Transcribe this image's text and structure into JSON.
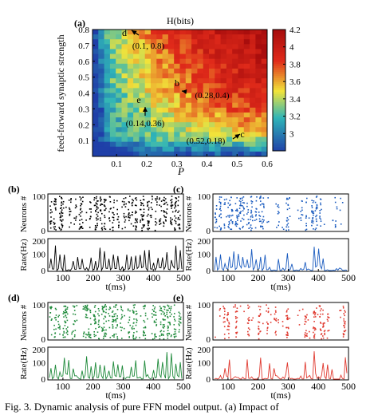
{
  "figure": {
    "caption": "Fig. 3. Dynamic analysis of pure FFN model output. (a) Impact of"
  },
  "chart_data": [
    {
      "panel": "(a)",
      "type": "heatmap",
      "title": "H(bits)",
      "xlabel": "P",
      "ylabel": "feed-forward synaptic strength",
      "xlim": [
        0.02,
        0.6
      ],
      "ylim": [
        0.0,
        0.8
      ],
      "xticks": [
        "0.1",
        "0.2",
        "0.3",
        "0.4",
        "0.5",
        "0.6"
      ],
      "yticks": [
        "0.1",
        "0.2",
        "0.3",
        "0.4",
        "0.5",
        "0.6",
        "0.7",
        "0.8"
      ],
      "colorbar": {
        "min": 2.8,
        "max": 4.2,
        "ticks": [
          "3",
          "3.2",
          "3.4",
          "3.6",
          "3.8",
          "4",
          "4.2"
        ]
      },
      "colors": {
        "low": "#1f3fa8",
        "mid": "#2fb5b8",
        "midhigh": "#f1e33a",
        "high": "#e02a1a",
        "top": "#a80d0d"
      },
      "annotations": [
        {
          "letter": "d",
          "label": "(0.1, 0.8)",
          "x": 0.1,
          "y": 0.8
        },
        {
          "letter": "b",
          "label": "(0.28,0.4)",
          "x": 0.28,
          "y": 0.4
        },
        {
          "letter": "e",
          "label": "(0.14,0.36)",
          "x": 0.14,
          "y": 0.36
        },
        {
          "letter": "c",
          "label": "(0.52,0.18)",
          "x": 0.52,
          "y": 0.18
        }
      ]
    },
    {
      "panel": "(b)",
      "type": "scatter+line",
      "color": "#000000",
      "density": 0.85,
      "raster_ylabel": "Neurons #",
      "rate_ylabel": "Rate(Hz)",
      "xlabel": "t(ms)",
      "raster_yticks": [
        "0",
        "100"
      ],
      "rate_yticks": [
        "0",
        "100",
        "200"
      ],
      "xticks": [
        "100",
        "200",
        "300",
        "400",
        "500"
      ],
      "xlim": [
        50,
        500
      ]
    },
    {
      "panel": "(c)",
      "type": "scatter+line",
      "color": "#1a5bbf",
      "density": 0.5,
      "raster_ylabel": "Neurons #",
      "rate_ylabel": "Rate(Hz)",
      "xlabel": "t(ms)",
      "raster_yticks": [
        "0",
        "100"
      ],
      "rate_yticks": [
        "0",
        "100",
        "200"
      ],
      "xticks": [
        "100",
        "200",
        "300",
        "400",
        "500"
      ],
      "xlim": [
        50,
        500
      ]
    },
    {
      "panel": "(d)",
      "type": "scatter+line",
      "color": "#1e8a3a",
      "density": 0.85,
      "raster_ylabel": "Neurons #",
      "rate_ylabel": "Rate(Hz)",
      "xlabel": "t(ms)",
      "raster_yticks": [
        "0",
        "100"
      ],
      "rate_yticks": [
        "0",
        "100",
        "200"
      ],
      "xticks": [
        "100",
        "200",
        "300",
        "400",
        "500"
      ],
      "xlim": [
        50,
        500
      ]
    },
    {
      "panel": "(e)",
      "type": "scatter+line",
      "color": "#e03a30",
      "density": 0.45,
      "raster_ylabel": "Neurons #",
      "rate_ylabel": "Rate(Hz)",
      "xlabel": "t(ms)",
      "raster_yticks": [
        "0",
        "100"
      ],
      "rate_yticks": [
        "0",
        "100",
        "200"
      ],
      "xticks": [
        "100",
        "200",
        "300",
        "400",
        "500"
      ],
      "xlim": [
        50,
        500
      ]
    }
  ]
}
